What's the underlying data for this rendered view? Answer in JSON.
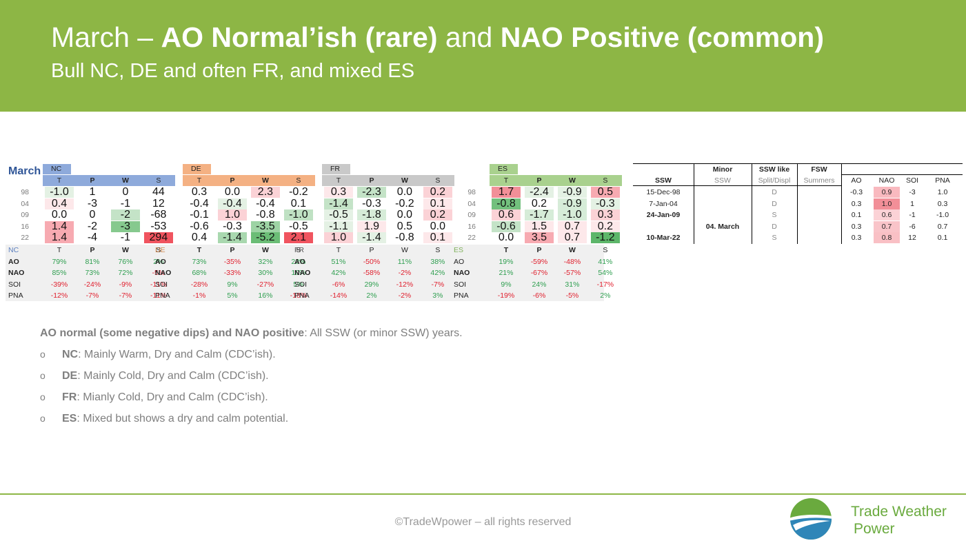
{
  "header": {
    "title_part1": "March – ",
    "title_bold1": "AO Normal’ish (rare)",
    "title_part2": " and ",
    "title_bold2": "NAO Positive (common)",
    "subtitle": "Bull NC, DE and often FR, and mixed ES"
  },
  "tables": {
    "month_label": "March",
    "years": [
      "98",
      "04",
      "09",
      "16",
      "22"
    ],
    "blocks": [
      {
        "name": "NC",
        "header_color": "#8eaadb",
        "cols": [
          "T",
          "P",
          "W",
          "S"
        ],
        "values": [
          [
            "-1.0",
            "1",
            "0",
            "44"
          ],
          [
            "0.4",
            "-3",
            "-1",
            "12"
          ],
          [
            "0.0",
            "0",
            "-2",
            "-68"
          ],
          [
            "1.4",
            "-2",
            "-3",
            "-53"
          ],
          [
            "1.4",
            "-4",
            "-1",
            "294"
          ]
        ],
        "colors": [
          [
            "#e4f1e4",
            "#ffffff",
            "#ffffff",
            "#ffffff"
          ],
          [
            "#fde8ea",
            "#ffffff",
            "#ffffff",
            "#ffffff"
          ],
          [
            "#ffffff",
            "#ffffff",
            "#c4e3c7",
            "#ffffff"
          ],
          [
            "#f7aab1",
            "#ffffff",
            "#86c98e",
            "#ffffff"
          ],
          [
            "#f7aab1",
            "#ffffff",
            "#ffffff",
            "#f0545f"
          ]
        ],
        "corr_label": "NC",
        "corr_cols": [
          "T",
          "P",
          "W",
          "S"
        ],
        "corr_rows": [
          {
            "label": "AO",
            "values": [
              "79%",
              "81%",
              "76%",
              "2%"
            ]
          },
          {
            "label": "NAO",
            "values": [
              "85%",
              "73%",
              "72%",
              "-5%"
            ]
          },
          {
            "label": "SOI",
            "values": [
              "-39%",
              "-24%",
              "-9%",
              "-11%"
            ]
          },
          {
            "label": "PNA",
            "values": [
              "-12%",
              "-7%",
              "-7%",
              "-11%"
            ]
          }
        ]
      },
      {
        "name": "DE",
        "header_color": "#f4b183",
        "cols": [
          "T",
          "P",
          "W",
          "S"
        ],
        "values": [
          [
            "0.3",
            "0.0",
            "2.3",
            "-0.2"
          ],
          [
            "-0.4",
            "-0.4",
            "-0.4",
            "0.1"
          ],
          [
            "-0.1",
            "1.0",
            "-0.8",
            "-1.0"
          ],
          [
            "-0.6",
            "-0.3",
            "-3.5",
            "-0.5"
          ],
          [
            "0.4",
            "-1.4",
            "-5.2",
            "2.1"
          ]
        ],
        "colors": [
          [
            "#ffffff",
            "#ffffff",
            "#fbd2d6",
            "#ffffff"
          ],
          [
            "#ffffff",
            "#e4f1e4",
            "#ffffff",
            "#ffffff"
          ],
          [
            "#ffffff",
            "#fbd2d6",
            "#ffffff",
            "#bfe1c3"
          ],
          [
            "#ffffff",
            "#ffffff",
            "#9dd3a4",
            "#ffffff"
          ],
          [
            "#ffffff",
            "#a9d8af",
            "#6bbd76",
            "#f0545f"
          ]
        ],
        "corr_label": "DE",
        "corr_cols": [
          "T",
          "P",
          "W",
          "S"
        ],
        "corr_rows": [
          {
            "label": "AO",
            "values": [
              "73%",
              "-35%",
              "32%",
              "23%"
            ]
          },
          {
            "label": "NAO",
            "values": [
              "68%",
              "-33%",
              "30%",
              "10%"
            ]
          },
          {
            "label": "SOI",
            "values": [
              "-28%",
              "9%",
              "-27%",
              "5%"
            ]
          },
          {
            "label": "PNA",
            "values": [
              "-1%",
              "5%",
              "16%",
              "-18%"
            ]
          }
        ]
      },
      {
        "name": "FR",
        "header_color": "#c9c9c9",
        "cols": [
          "T",
          "P",
          "W",
          "S"
        ],
        "values": [
          [
            "0.3",
            "-2.3",
            "0.0",
            "0.2"
          ],
          [
            "-1.4",
            "-0.3",
            "-0.2",
            "0.1"
          ],
          [
            "-0.5",
            "-1.8",
            "0.0",
            "0.2"
          ],
          [
            "-1.1",
            "1.9",
            "0.5",
            "0.0"
          ],
          [
            "1.0",
            "-1.4",
            "-0.8",
            "0.1"
          ]
        ],
        "colors": [
          [
            "#fde8ea",
            "#c4e3c7",
            "#ffffff",
            "#fbd2d6"
          ],
          [
            "#c4e3c7",
            "#ffffff",
            "#ffffff",
            "#fde8ea"
          ],
          [
            "#e4f1e4",
            "#d6ecd8",
            "#ffffff",
            "#fbd2d6"
          ],
          [
            "#e4f1e4",
            "#fde8ea",
            "#ffffff",
            "#ffffff"
          ],
          [
            "#fbd2d6",
            "#e4f1e4",
            "#ffffff",
            "#fde8ea"
          ]
        ],
        "corr_label": "FR",
        "corr_cols": [
          "T",
          "P",
          "W",
          "S"
        ],
        "corr_rows": [
          {
            "label": "AO",
            "values": [
              "51%",
              "-50%",
              "11%",
              "38%"
            ]
          },
          {
            "label": "NAO",
            "values": [
              "42%",
              "-58%",
              "-2%",
              "42%"
            ]
          },
          {
            "label": "SOI",
            "values": [
              "-6%",
              "29%",
              "-12%",
              "-7%"
            ]
          },
          {
            "label": "PNA",
            "values": [
              "-14%",
              "2%",
              "-2%",
              "3%"
            ]
          }
        ]
      },
      {
        "name": "ES",
        "header_color": "#a9d18e",
        "cols": [
          "T",
          "P",
          "W",
          "S"
        ],
        "values": [
          [
            "1.7",
            "-2.4",
            "-0.9",
            "0.5"
          ],
          [
            "-0.8",
            "0.2",
            "-0.9",
            "-0.3"
          ],
          [
            "0.6",
            "-1.7",
            "-1.0",
            "0.3"
          ],
          [
            "-0.6",
            "1.5",
            "0.7",
            "0.2"
          ],
          [
            "0.0",
            "3.5",
            "0.7",
            "-1.2"
          ]
        ],
        "colors": [
          [
            "#f28f98",
            "#e4f1e4",
            "#e4f1e4",
            "#f7aab1"
          ],
          [
            "#72c07d",
            "#ffffff",
            "#d6ecd8",
            "#e4f1e4"
          ],
          [
            "#fbd2d6",
            "#d6ecd8",
            "#d6ecd8",
            "#fbd2d6"
          ],
          [
            "#c4e3c7",
            "#fde8ea",
            "#fde8ea",
            "#fde8ea"
          ],
          [
            "#ffffff",
            "#f7aab1",
            "#fde8ea",
            "#5db66a"
          ]
        ],
        "corr_label": "ES",
        "corr_cols": [
          "T",
          "P",
          "W",
          "S"
        ],
        "corr_rows": [
          {
            "label": "AO",
            "values": [
              "19%",
              "-59%",
              "-48%",
              "41%"
            ]
          },
          {
            "label": "NAO",
            "values": [
              "21%",
              "-67%",
              "-57%",
              "54%"
            ]
          },
          {
            "label": "SOI",
            "values": [
              "9%",
              "24%",
              "31%",
              "-17%"
            ]
          },
          {
            "label": "PNA",
            "values": [
              "-19%",
              "-6%",
              "-5%",
              "2%"
            ]
          }
        ]
      }
    ]
  },
  "ssw_table": {
    "head1": [
      "",
      "Minor",
      "SSW like",
      "FSW",
      "",
      "",
      "",
      ""
    ],
    "head2": [
      "SSW",
      "SSW",
      "Split/Displ",
      "Summers",
      "AO",
      "NAO",
      "SOI",
      "PNA"
    ],
    "rows": [
      {
        "ssw": "15-Dec-98",
        "minor": "",
        "like": "D",
        "fsw": "",
        "ao": "-0.3",
        "nao": "0.9",
        "soi": "-3",
        "pna": "1.0"
      },
      {
        "ssw": "7-Jan-04",
        "minor": "",
        "like": "D",
        "fsw": "",
        "ao": "0.3",
        "nao": "1.0",
        "soi": "1",
        "pna": "0.3"
      },
      {
        "ssw": "24-Jan-09",
        "minor": "",
        "like": "S",
        "fsw": "",
        "ao": "0.1",
        "nao": "0.6",
        "soi": "-1",
        "pna": "-1.0"
      },
      {
        "ssw": "",
        "minor": "04. March",
        "like": "D",
        "fsw": "",
        "ao": "0.3",
        "nao": "0.7",
        "soi": "-6",
        "pna": "0.7"
      },
      {
        "ssw": "10-Mar-22",
        "minor": "",
        "like": "S",
        "fsw": "",
        "ao": "0.3",
        "nao": "0.8",
        "soi": "12",
        "pna": "0.1"
      }
    ],
    "nao_colors": [
      "#f9b9bf",
      "#f28f98",
      "#fbd2d6",
      "#f9c4c9",
      "#f9c0c5"
    ]
  },
  "notes": {
    "intro_bold": "AO normal (some negative dips) and NAO positive",
    "intro_rest": ": All SSW (or minor SSW) years.",
    "bullet_glyph": "o",
    "items": [
      {
        "bold": "NC",
        "text": ": Mainly Warm, Dry and Calm (CDC’ish)."
      },
      {
        "bold": "DE",
        "text": ": Mainly Cold, Dry and Calm (CDC’ish)."
      },
      {
        "bold": "FR",
        "text": ": Mianly Cold, Dry and Calm (CDC’ish)."
      },
      {
        "bold": "ES",
        "text": ": Mixed but shows a dry and calm potential."
      }
    ]
  },
  "footer": {
    "copyright": "©TradeWpower – all rights reserved",
    "brand_line1": "Trade Weather",
    "brand_line2": "Power"
  },
  "colors": {
    "accent": "#8db645",
    "positive": "#2e9e4f",
    "negative": "#e0202e"
  }
}
